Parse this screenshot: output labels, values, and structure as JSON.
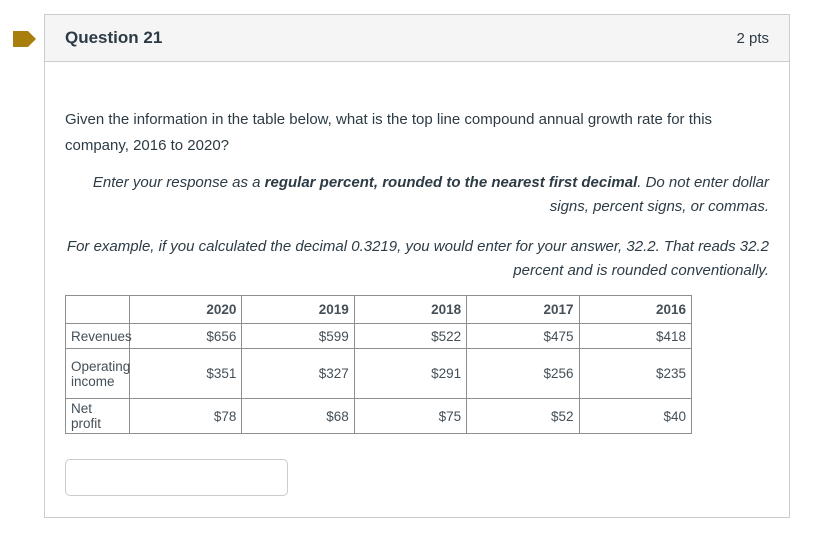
{
  "header": {
    "title": "Question 21",
    "points": "2 pts"
  },
  "question": {
    "text": "Given the information in the table below, what is the top line compound annual growth rate for this company, 2016 to 2020?"
  },
  "instructions": {
    "p1_pre": "Enter your response as a ",
    "p1_bold": "regular percent, rounded to the nearest first decimal",
    "p1_post": ". Do not enter dollar signs, percent signs, or commas.",
    "p2": "For example, if you calculated the decimal 0.3219, you would enter for your answer, 32.2. That reads 32.2 percent and is rounded conventionally."
  },
  "table": {
    "columns": [
      "",
      "2020",
      "2019",
      "2018",
      "2017",
      "2016"
    ],
    "rows": [
      {
        "label": "Revenues",
        "values": [
          "$656",
          "$599",
          "$522",
          "$475",
          "$418"
        ]
      },
      {
        "label": "Operating income",
        "values": [
          "$351",
          "$327",
          "$291",
          "$256",
          "$235"
        ]
      },
      {
        "label": "Net profit",
        "values": [
          "$78",
          "$68",
          "$75",
          "$52",
          "$40"
        ]
      }
    ]
  },
  "answer": {
    "value": "",
    "placeholder": ""
  },
  "colors": {
    "flag": "#a87e0c",
    "container_border": "#c7cdd1",
    "header_bg": "#f5f5f5",
    "text": "#2d3b45",
    "table_border": "#8e8e8e"
  }
}
